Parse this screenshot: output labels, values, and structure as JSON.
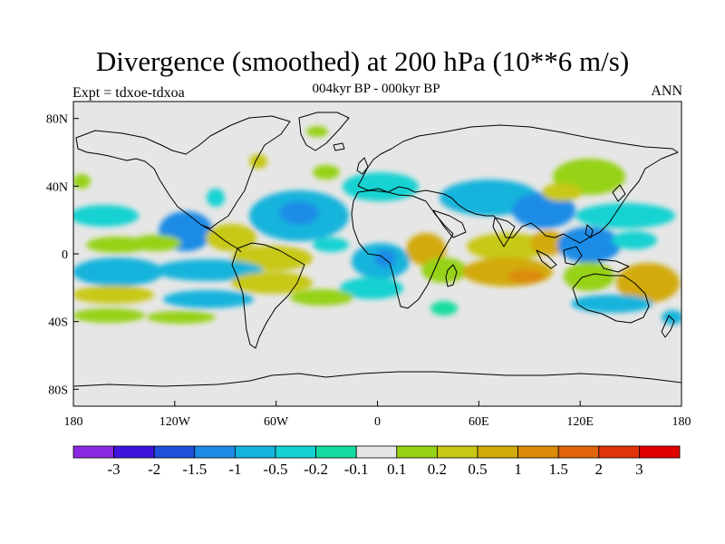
{
  "title": "Divergence (smoothed) at 200 hPa (10**6 m/s)",
  "subtitle": "004kyr BP - 000kyr BP",
  "left_label": "Expt = tdxoe-tdxoa",
  "right_label": "ANN",
  "map": {
    "projection": "cylindrical-equidistant",
    "lon_range": [
      -180,
      180
    ],
    "lat_range": [
      -90,
      90
    ],
    "ocean_land_background": "#e6e6e6",
    "coastline_color": "#000000",
    "x_ticks": [
      {
        "lon": -180,
        "label": "180"
      },
      {
        "lon": -120,
        "label": "120W"
      },
      {
        "lon": -60,
        "label": "60W"
      },
      {
        "lon": 0,
        "label": "0"
      },
      {
        "lon": 60,
        "label": "60E"
      },
      {
        "lon": 120,
        "label": "120E"
      },
      {
        "lon": 180,
        "label": "180"
      }
    ],
    "y_ticks": [
      {
        "lat": 80,
        "label": "80N"
      },
      {
        "lat": 40,
        "label": "40N"
      },
      {
        "lat": 0,
        "label": "0"
      },
      {
        "lat": -40,
        "label": "40S"
      },
      {
        "lat": -80,
        "label": "80S"
      }
    ]
  },
  "colorbar": {
    "colors": [
      "#8a2be2",
      "#3c14dc",
      "#1e50dc",
      "#1e8ce6",
      "#14b4dc",
      "#14d2d2",
      "#14dca0",
      "#e6e6e6",
      "#96d214",
      "#c8c814",
      "#d2aa0a",
      "#dc8c0a",
      "#e1640a",
      "#e1320a",
      "#e10000"
    ],
    "labels": [
      "-3",
      "-2",
      "-1.5",
      "-1",
      "-0.5",
      "-0.2",
      "-0.1",
      "0.1",
      "0.2",
      "0.5",
      "1",
      "1.5",
      "2",
      "3"
    ]
  }
}
